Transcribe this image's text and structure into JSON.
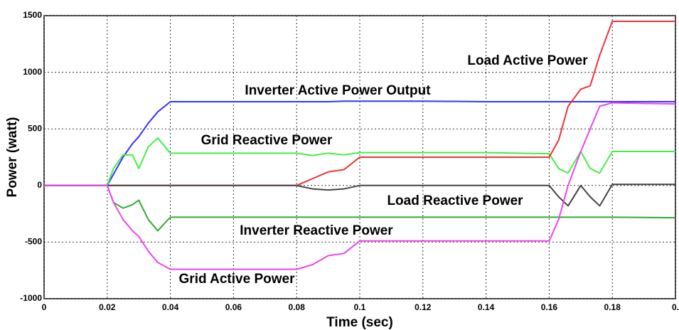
{
  "chart_data": {
    "type": "line",
    "xlabel": "Time (sec)",
    "ylabel": "Power (watt)",
    "x": [
      0,
      0.02,
      0.022,
      0.025,
      0.028,
      0.03,
      0.033,
      0.036,
      0.04,
      0.06,
      0.08,
      0.085,
      0.09,
      0.095,
      0.1,
      0.12,
      0.14,
      0.16,
      0.163,
      0.166,
      0.17,
      0.173,
      0.176,
      0.18,
      0.2
    ],
    "series": [
      {
        "name": "Inverter Active Power Output",
        "color": "#3333ff",
        "values": [
          0,
          0,
          100,
          250,
          370,
          430,
          550,
          650,
          740,
          740,
          740,
          740,
          740,
          745,
          745,
          745,
          740,
          740,
          740,
          740,
          740,
          740,
          740,
          740,
          740
        ]
      },
      {
        "name": "Grid Reactive Power",
        "color": "#44ee44",
        "values": [
          0,
          0,
          150,
          270,
          270,
          150,
          340,
          420,
          285,
          285,
          285,
          265,
          285,
          270,
          290,
          290,
          290,
          280,
          150,
          110,
          300,
          150,
          110,
          300,
          300
        ]
      },
      {
        "name": "Load Active Power",
        "color": "#ee3333",
        "values": [
          0,
          0,
          0,
          0,
          0,
          0,
          0,
          0,
          0,
          0,
          0,
          60,
          120,
          140,
          250,
          250,
          250,
          250,
          400,
          700,
          850,
          880,
          1150,
          1450,
          1450
        ]
      },
      {
        "name": "Load Reactive Power",
        "color": "#444444",
        "values": [
          0,
          0,
          0,
          0,
          0,
          0,
          0,
          0,
          0,
          0,
          0,
          -30,
          -40,
          -30,
          0,
          0,
          0,
          0,
          -100,
          -180,
          0,
          -100,
          -180,
          10,
          10
        ]
      },
      {
        "name": "Inverter Reactive Power",
        "color": "#33aa33",
        "values": [
          0,
          0,
          -150,
          -200,
          -170,
          -130,
          -300,
          -400,
          -280,
          -280,
          -280,
          -280,
          -280,
          -280,
          -280,
          -280,
          -280,
          -280,
          -280,
          -280,
          -280,
          -280,
          -280,
          -280,
          -285
        ]
      },
      {
        "name": "Grid Active Power",
        "color": "#ee44ee",
        "values": [
          0,
          0,
          -150,
          -300,
          -400,
          -450,
          -580,
          -680,
          -740,
          -740,
          -740,
          -700,
          -620,
          -600,
          -490,
          -490,
          -490,
          -490,
          -300,
          0,
          300,
          500,
          700,
          730,
          720
        ]
      }
    ],
    "xlim": [
      0,
      0.2
    ],
    "xticks": [
      0,
      0.02,
      0.04,
      0.06,
      0.08,
      0.1,
      0.12,
      0.14,
      0.16,
      0.18,
      {
        "value": 0.2,
        "label": "0."
      }
    ],
    "ylim": [
      -1000,
      1500
    ],
    "yticks": [
      -1000,
      -500,
      0,
      500,
      1000,
      1500
    ],
    "grid": true
  }
}
